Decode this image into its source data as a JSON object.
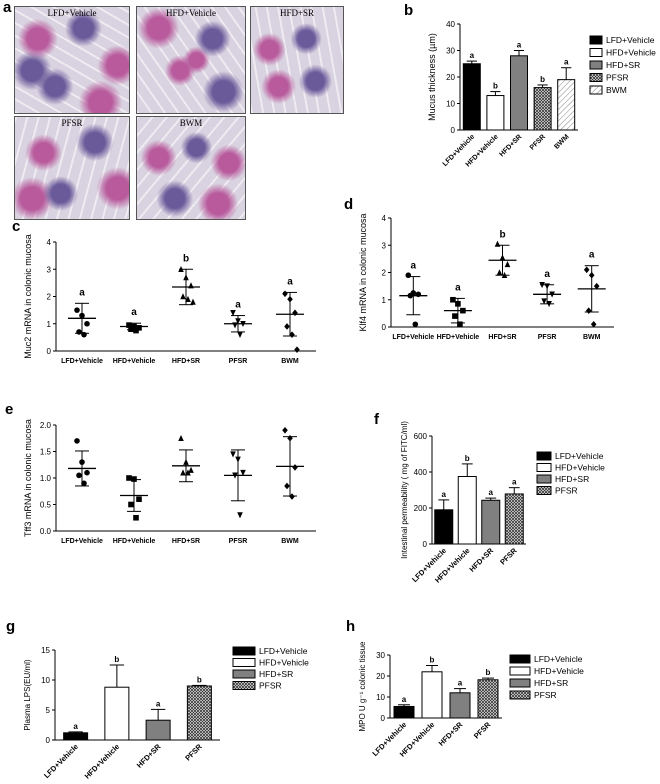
{
  "panels": {
    "a": "a",
    "b": "b",
    "c": "c",
    "d": "d",
    "e": "e",
    "f": "f",
    "g": "g",
    "h": "h"
  },
  "micrographs": [
    {
      "caption": "LFD+Vehicle"
    },
    {
      "caption": "HFD+Vehicle"
    },
    {
      "caption": "HFD+SR"
    },
    {
      "caption": "PFSR"
    },
    {
      "caption": "BWM"
    }
  ],
  "colors": {
    "tissue_pink": "#b85a9c",
    "tissue_purple": "#6a5a9a",
    "tissue_bg": "#d9d2e0"
  },
  "chart_data": [
    {
      "id": "b",
      "type": "bar",
      "categories": [
        "LFD+Vehicle",
        "HFD+Vehicle",
        "HFD+SR",
        "PFSR",
        "BWM"
      ],
      "values": [
        25,
        13,
        28,
        16,
        19
      ],
      "errors": [
        1,
        1.5,
        2,
        1,
        4.5
      ],
      "letters": [
        "a",
        "b",
        "a",
        "b",
        "a"
      ],
      "fills": [
        "black",
        "white",
        "gray",
        "hatch",
        "lighthatch"
      ],
      "title": "",
      "xlabel": "",
      "ylabel": "Mucus thickness (µm)",
      "ylim": [
        0,
        40
      ],
      "yticks": [
        "0",
        "10",
        "20",
        "30",
        "40"
      ],
      "legend": [
        "LFD+Vehicle",
        "HFD+Vehicle",
        "HFD+SR",
        "PFSR",
        "BWM"
      ],
      "legend_position": "right"
    },
    {
      "id": "c",
      "type": "scatter",
      "categories": [
        "LFD+Vehicle",
        "HFD+Vehicle",
        "HFD+SR",
        "PFSR",
        "BWM"
      ],
      "points": [
        [
          1.5,
          1.3,
          1.0,
          0.7,
          0.6
        ],
        [
          0.95,
          0.9,
          0.85,
          0.8,
          0.75
        ],
        [
          3.0,
          2.7,
          2.4,
          2.0,
          1.9,
          1.8
        ],
        [
          1.4,
          1.1,
          1.0,
          0.95,
          0.6
        ],
        [
          2.1,
          1.9,
          1.4,
          0.9,
          0.6,
          0.05
        ]
      ],
      "means": [
        1.2,
        0.9,
        2.35,
        1.0,
        1.35
      ],
      "sd": [
        0.55,
        0.12,
        0.65,
        0.3,
        0.8
      ],
      "letters": [
        "a",
        "a",
        "b",
        "a",
        "a"
      ],
      "markers": [
        "circle",
        "square",
        "triangle",
        "triangle-down",
        "diamond"
      ],
      "title": "",
      "xlabel": "",
      "ylabel": "Muc2 mRNA in colonic mucosa",
      "ylim": [
        0,
        4
      ],
      "yticks": [
        "0",
        "1",
        "2",
        "3",
        "4"
      ]
    },
    {
      "id": "d",
      "type": "scatter",
      "categories": [
        "LFD+Vehicle",
        "HFD+Vehicle",
        "HFD+SR",
        "PFSR",
        "BWM"
      ],
      "points": [
        [
          1.9,
          1.25,
          1.2,
          1.15,
          0.1
        ],
        [
          1.0,
          0.85,
          0.6,
          0.4,
          0.1
        ],
        [
          3.05,
          2.55,
          2.3,
          2.0,
          1.9
        ],
        [
          1.55,
          1.5,
          1.2,
          0.95,
          0.85
        ],
        [
          2.1,
          1.9,
          1.5,
          0.6,
          0.1
        ]
      ],
      "means": [
        1.15,
        0.6,
        2.45,
        1.2,
        1.4
      ],
      "sd": [
        0.7,
        0.45,
        0.55,
        0.35,
        0.85
      ],
      "letters": [
        "a",
        "a",
        "b",
        "a",
        "a"
      ],
      "markers": [
        "circle",
        "square",
        "triangle",
        "triangle-down",
        "diamond"
      ],
      "title": "",
      "xlabel": "",
      "ylabel": "Klf4 mRNA in colonic mucosa",
      "ylim": [
        0,
        4
      ],
      "yticks": [
        "0",
        "1",
        "2",
        "3",
        "4"
      ]
    },
    {
      "id": "e",
      "type": "scatter",
      "categories": [
        "LFD+Vehicle",
        "HFD+Vehicle",
        "HFD+SR",
        "PFSR",
        "BWM"
      ],
      "points": [
        [
          1.7,
          1.3,
          1.1,
          1.05,
          0.9
        ],
        [
          1.0,
          0.98,
          0.6,
          0.5,
          0.25
        ],
        [
          1.75,
          1.3,
          1.15,
          1.1,
          1.1
        ],
        [
          1.45,
          1.35,
          1.1,
          1.05,
          0.3
        ],
        [
          1.9,
          1.75,
          1.2,
          0.85,
          0.65
        ]
      ],
      "means": [
        1.18,
        0.67,
        1.23,
        1.05,
        1.22
      ],
      "sd": [
        0.33,
        0.3,
        0.3,
        0.48,
        0.56
      ],
      "letters": [
        "",
        "",
        "",
        "",
        ""
      ],
      "markers": [
        "circle",
        "square",
        "triangle",
        "triangle-down",
        "diamond"
      ],
      "title": "",
      "xlabel": "",
      "ylabel": "Tff3 mRNA in colonic mucosa",
      "ylim": [
        0,
        2.0
      ],
      "yticks": [
        "0.0",
        "0.5",
        "1.0",
        "1.5",
        "2.0"
      ]
    },
    {
      "id": "f",
      "type": "bar",
      "categories": [
        "LFD+Vehicle",
        "HFD+Vehicle",
        "HFD+SR",
        "PFSR"
      ],
      "values": [
        190,
        375,
        243,
        278
      ],
      "errors": [
        55,
        70,
        12,
        35
      ],
      "letters": [
        "a",
        "b",
        "a",
        "a"
      ],
      "fills": [
        "black",
        "white",
        "gray",
        "hatch"
      ],
      "title": "",
      "xlabel": "",
      "ylabel": "Intestinal permeability ( mg of FITC/ml)",
      "ylim": [
        0,
        600
      ],
      "yticks": [
        "0",
        "200",
        "400",
        "600"
      ],
      "legend": [
        "LFD+Vehicle",
        "HFD+Vehicle",
        "HFD+SR",
        "PFSR"
      ],
      "legend_position": "right"
    },
    {
      "id": "g",
      "type": "bar",
      "categories": [
        "LFD+Vehicle",
        "HFD+Vehicle",
        "HFD+SR",
        "PFSR"
      ],
      "values": [
        1.2,
        8.8,
        3.3,
        9.0
      ],
      "errors": [
        0.15,
        3.7,
        1.8,
        0.1
      ],
      "letters": [
        "a",
        "b",
        "a",
        "b"
      ],
      "fills": [
        "black",
        "white",
        "gray",
        "hatch"
      ],
      "title": "",
      "xlabel": "",
      "ylabel": "Plasma LPS(EU/ml)",
      "ylim": [
        0,
        15
      ],
      "yticks": [
        "0",
        "5",
        "10",
        "15"
      ],
      "legend": [
        "LFD+Vehicle",
        "HFD+Vehicle",
        "HFD+SR",
        "PFSR"
      ],
      "legend_position": "right"
    },
    {
      "id": "h",
      "type": "bar",
      "categories": [
        "LFD+Vehicle",
        "HFD+Vehicle",
        "HFD+SR",
        "PFSR"
      ],
      "values": [
        5.5,
        22,
        12,
        18.2
      ],
      "errors": [
        0.8,
        3,
        2,
        0.8
      ],
      "letters": [
        "a",
        "b",
        "a",
        "b"
      ],
      "fills": [
        "black",
        "white",
        "gray",
        "hatch"
      ],
      "title": "",
      "xlabel": "",
      "ylabel": "MPO U g⁻¹ colonic tissue",
      "ylim": [
        0,
        30
      ],
      "yticks": [
        "0",
        "10",
        "20",
        "30"
      ],
      "legend": [
        "LFD+Vehicle",
        "HFD+Vehicle",
        "HFD+SR",
        "PFSR"
      ],
      "legend_position": "right"
    }
  ]
}
